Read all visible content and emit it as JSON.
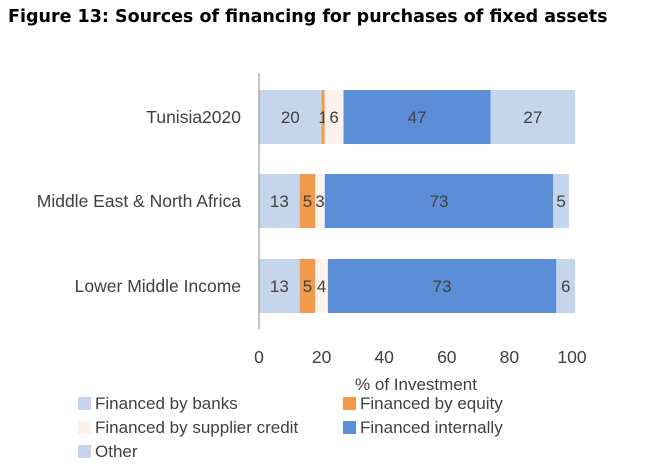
{
  "chart_data": {
    "type": "bar",
    "orientation": "horizontal",
    "stacked": true,
    "title": "Figure 13: Sources of financing for purchases of fixed assets",
    "xlabel": "% of Investment",
    "ylabel": "",
    "xlim": [
      0,
      100
    ],
    "x_ticks": [
      "0",
      "20",
      "40",
      "60",
      "80",
      "100"
    ],
    "grid": false,
    "legend_position": "bottom",
    "categories": [
      "Tunisia2020",
      "Middle East & North Africa",
      "Lower Middle Income"
    ],
    "series": [
      {
        "name": "Financed by banks",
        "color": "#c5d5ec",
        "values": [
          20,
          13,
          13
        ]
      },
      {
        "name": "Financed by equity",
        "color": "#f09a4a",
        "values": [
          1,
          5,
          5
        ]
      },
      {
        "name": "Financed by supplier credit",
        "color": "#fdf3ec",
        "values": [
          6,
          3,
          4
        ]
      },
      {
        "name": "Financed internally",
        "color": "#5b8ed6",
        "values": [
          47,
          73,
          73
        ]
      },
      {
        "name": "Other",
        "color": "#c5d5ec",
        "values": [
          27,
          5,
          6
        ]
      }
    ]
  }
}
